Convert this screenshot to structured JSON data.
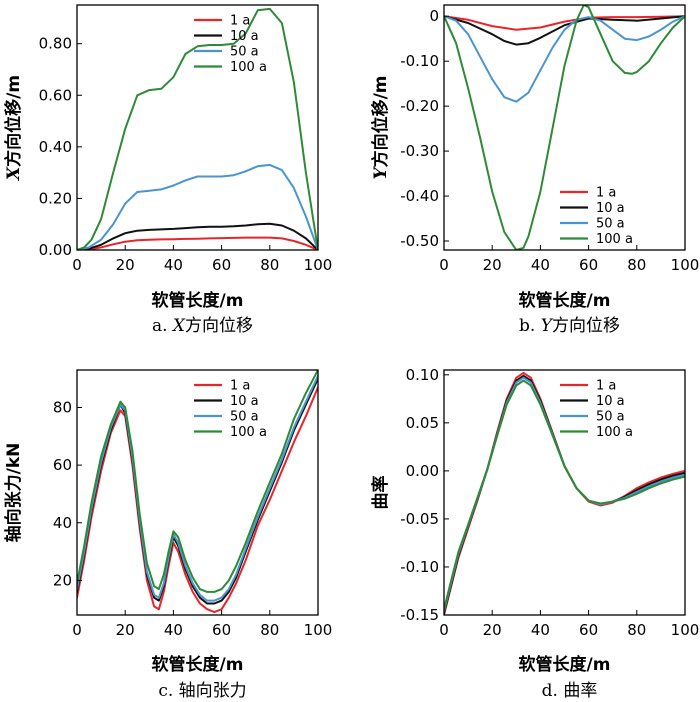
{
  "colors": {
    "1 a": "#e8252a",
    "10 a": "#111111",
    "50 a": "#4a95d0",
    "100 a": "#2e8b35"
  },
  "chart_data": [
    {
      "id": "a",
      "type": "line",
      "caption_prefix": "a. ",
      "caption_var": "X",
      "caption_text": "方向位移",
      "xlabel": "软管长度/m",
      "ylabel_var": "X",
      "ylabel_text": "方向位移/m",
      "xlim": [
        0,
        100
      ],
      "ylim": [
        0,
        0.95
      ],
      "xticks": [
        0,
        20,
        40,
        60,
        80,
        100
      ],
      "xtick_labels": [
        "0",
        "20",
        "40",
        "60",
        "80",
        "100"
      ],
      "yticks": [
        0,
        0.2,
        0.4,
        0.6,
        0.8
      ],
      "ytick_labels": [
        "0.00",
        "0.20",
        "0.40",
        "0.60",
        "0.80"
      ],
      "legend_position": "top-right",
      "series": [
        {
          "name": "1 a",
          "x": [
            0,
            5,
            10,
            15,
            20,
            25,
            30,
            35,
            40,
            45,
            50,
            55,
            60,
            65,
            70,
            75,
            80,
            85,
            90,
            95,
            100
          ],
          "y": [
            0,
            0.002,
            0.01,
            0.022,
            0.032,
            0.038,
            0.04,
            0.041,
            0.042,
            0.043,
            0.044,
            0.045,
            0.046,
            0.047,
            0.048,
            0.048,
            0.048,
            0.045,
            0.035,
            0.02,
            0
          ]
        },
        {
          "name": "10 a",
          "x": [
            0,
            5,
            10,
            15,
            20,
            25,
            30,
            35,
            40,
            45,
            50,
            55,
            60,
            65,
            70,
            75,
            80,
            85,
            90,
            95,
            100
          ],
          "y": [
            0,
            0.005,
            0.02,
            0.045,
            0.065,
            0.075,
            0.078,
            0.08,
            0.082,
            0.085,
            0.088,
            0.09,
            0.09,
            0.092,
            0.095,
            0.1,
            0.102,
            0.095,
            0.075,
            0.045,
            0
          ]
        },
        {
          "name": "50 a",
          "x": [
            0,
            5,
            10,
            15,
            20,
            25,
            30,
            35,
            40,
            45,
            50,
            55,
            60,
            65,
            70,
            75,
            80,
            85,
            90,
            95,
            100
          ],
          "y": [
            0,
            0.01,
            0.04,
            0.1,
            0.18,
            0.225,
            0.23,
            0.235,
            0.25,
            0.27,
            0.285,
            0.285,
            0.285,
            0.29,
            0.305,
            0.325,
            0.33,
            0.31,
            0.24,
            0.13,
            0
          ]
        },
        {
          "name": "100 a",
          "x": [
            0,
            3,
            6,
            10,
            15,
            20,
            25,
            30,
            35,
            40,
            45,
            50,
            55,
            60,
            65,
            70,
            75,
            80,
            85,
            90,
            95,
            100
          ],
          "y": [
            0,
            0.01,
            0.04,
            0.12,
            0.3,
            0.47,
            0.6,
            0.62,
            0.625,
            0.67,
            0.76,
            0.79,
            0.795,
            0.795,
            0.8,
            0.84,
            0.93,
            0.935,
            0.88,
            0.65,
            0.3,
            0
          ]
        }
      ]
    },
    {
      "id": "b",
      "type": "line",
      "caption_prefix": "b. ",
      "caption_var": "Y",
      "caption_text": "方向位移",
      "xlabel": "软管长度/m",
      "ylabel_var": "Y",
      "ylabel_text": "方向位移/m",
      "xlim": [
        0,
        100
      ],
      "ylim": [
        -0.52,
        0.025
      ],
      "xticks": [
        0,
        20,
        40,
        60,
        80,
        100
      ],
      "xtick_labels": [
        "0",
        "20",
        "40",
        "60",
        "80",
        "100"
      ],
      "yticks": [
        0,
        -0.1,
        -0.2,
        -0.3,
        -0.4,
        -0.5
      ],
      "ytick_labels": [
        "0",
        "-0.10",
        "-0.20",
        "-0.30",
        "-0.40",
        "-0.50"
      ],
      "legend_position": "center-right",
      "series": [
        {
          "name": "1 a",
          "x": [
            0,
            10,
            20,
            30,
            40,
            50,
            60,
            70,
            80,
            90,
            100
          ],
          "y": [
            0,
            -0.008,
            -0.022,
            -0.03,
            -0.025,
            -0.012,
            -0.003,
            -0.002,
            -0.002,
            -0.001,
            0
          ]
        },
        {
          "name": "10 a",
          "x": [
            0,
            10,
            20,
            25,
            30,
            35,
            40,
            50,
            60,
            70,
            80,
            90,
            100
          ],
          "y": [
            0,
            -0.015,
            -0.04,
            -0.055,
            -0.063,
            -0.06,
            -0.048,
            -0.02,
            -0.005,
            -0.008,
            -0.01,
            -0.005,
            0
          ]
        },
        {
          "name": "50 a",
          "x": [
            0,
            5,
            10,
            15,
            20,
            25,
            30,
            35,
            40,
            45,
            50,
            55,
            60,
            65,
            70,
            75,
            80,
            85,
            90,
            95,
            100
          ],
          "y": [
            0,
            -0.01,
            -0.04,
            -0.09,
            -0.14,
            -0.18,
            -0.19,
            -0.17,
            -0.12,
            -0.07,
            -0.03,
            -0.008,
            -0.002,
            -0.01,
            -0.03,
            -0.05,
            -0.053,
            -0.045,
            -0.03,
            -0.012,
            0
          ]
        },
        {
          "name": "100 a",
          "x": [
            0,
            5,
            10,
            15,
            20,
            25,
            30,
            33,
            35,
            40,
            45,
            50,
            55,
            58,
            60,
            65,
            70,
            75,
            78,
            80,
            85,
            90,
            95,
            100
          ],
          "y": [
            0,
            -0.06,
            -0.16,
            -0.27,
            -0.39,
            -0.48,
            -0.52,
            -0.515,
            -0.49,
            -0.39,
            -0.25,
            -0.11,
            -0.01,
            0.025,
            0.02,
            -0.04,
            -0.1,
            -0.126,
            -0.128,
            -0.124,
            -0.1,
            -0.06,
            -0.025,
            0
          ]
        }
      ]
    },
    {
      "id": "c",
      "type": "line",
      "caption_prefix": "c. ",
      "caption_var": "",
      "caption_text": "轴向张力",
      "xlabel": "软管长度/m",
      "ylabel_var": "",
      "ylabel_text": "轴向张力/kN",
      "xlim": [
        0,
        100
      ],
      "ylim": [
        8,
        93
      ],
      "xticks": [
        0,
        20,
        40,
        60,
        80,
        100
      ],
      "xtick_labels": [
        "0",
        "20",
        "40",
        "60",
        "80",
        "100"
      ],
      "yticks": [
        20,
        40,
        60,
        80
      ],
      "ytick_labels": [
        "20",
        "40",
        "60",
        "80"
      ],
      "legend_position": "top-right",
      "series": [
        {
          "name": "1 a",
          "x": [
            0,
            3,
            6,
            10,
            14,
            18,
            20,
            23,
            26,
            29,
            32,
            34,
            36,
            38,
            40,
            42,
            45,
            48,
            51,
            54,
            57,
            60,
            63,
            66,
            70,
            75,
            80,
            85,
            90,
            95,
            100
          ],
          "y": [
            14,
            27,
            42,
            58,
            71,
            79,
            77,
            60,
            38,
            20,
            11,
            10,
            16,
            25,
            33,
            30,
            22,
            16,
            12,
            10,
            9,
            10,
            14,
            19,
            27,
            39,
            48,
            58,
            68,
            77,
            87
          ]
        },
        {
          "name": "10 a",
          "x": [
            0,
            3,
            6,
            10,
            14,
            18,
            20,
            23,
            26,
            29,
            32,
            34,
            36,
            38,
            40,
            42,
            45,
            48,
            51,
            54,
            57,
            60,
            63,
            66,
            70,
            75,
            80,
            85,
            90,
            95,
            100
          ],
          "y": [
            16,
            29,
            44,
            60,
            72,
            81,
            78,
            62,
            40,
            22,
            14,
            13,
            18,
            27,
            35,
            32,
            24,
            18,
            14,
            12,
            12,
            13,
            16,
            21,
            30,
            41,
            51,
            61,
            72,
            81,
            90
          ]
        },
        {
          "name": "50 a",
          "x": [
            0,
            3,
            6,
            10,
            14,
            18,
            20,
            23,
            26,
            29,
            32,
            34,
            36,
            38,
            40,
            42,
            45,
            48,
            51,
            54,
            57,
            60,
            63,
            66,
            70,
            75,
            80,
            85,
            90,
            95,
            100
          ],
          "y": [
            17,
            30,
            45,
            61,
            73,
            81,
            79,
            63,
            41,
            23,
            15,
            14,
            19,
            28,
            36,
            33,
            25,
            19,
            15,
            13,
            13,
            14,
            17,
            22,
            31,
            42,
            52,
            62,
            73,
            82,
            91
          ]
        },
        {
          "name": "100 a",
          "x": [
            0,
            3,
            6,
            10,
            14,
            18,
            20,
            23,
            26,
            29,
            32,
            34,
            36,
            38,
            40,
            42,
            45,
            48,
            51,
            54,
            57,
            60,
            63,
            66,
            70,
            75,
            80,
            85,
            90,
            95,
            100
          ],
          "y": [
            19,
            32,
            47,
            63,
            74,
            82,
            80,
            65,
            43,
            26,
            18,
            17,
            22,
            30,
            37,
            35,
            27,
            21,
            17,
            16,
            16,
            17,
            20,
            25,
            33,
            44,
            54,
            64,
            76,
            85,
            93
          ]
        }
      ]
    },
    {
      "id": "d",
      "type": "line",
      "caption_prefix": "d. ",
      "caption_var": "",
      "caption_text": "曲率",
      "xlabel": "软管长度/m",
      "ylabel_var": "",
      "ylabel_text": "曲率",
      "xlim": [
        0,
        100
      ],
      "ylim": [
        -0.15,
        0.105
      ],
      "xticks": [
        0,
        20,
        40,
        60,
        80,
        100
      ],
      "xtick_labels": [
        "0",
        "20",
        "40",
        "60",
        "80",
        "100"
      ],
      "yticks": [
        0.1,
        0.05,
        0,
        -0.05,
        -0.1,
        -0.15
      ],
      "ytick_labels": [
        "0.10",
        "0.05",
        "0.00",
        "-0.05",
        "-0.10",
        "-0.15"
      ],
      "legend_position": "top-right",
      "series": [
        {
          "name": "1 a",
          "x": [
            0,
            3,
            6,
            10,
            14,
            18,
            22,
            26,
            30,
            33,
            36,
            40,
            45,
            50,
            55,
            60,
            65,
            70,
            75,
            80,
            85,
            90,
            95,
            100
          ],
          "y": [
            -0.15,
            -0.12,
            -0.09,
            -0.06,
            -0.03,
            0.002,
            0.04,
            0.075,
            0.097,
            0.102,
            0.097,
            0.075,
            0.04,
            0.005,
            -0.018,
            -0.032,
            -0.036,
            -0.033,
            -0.026,
            -0.018,
            -0.012,
            -0.007,
            -0.003,
            0
          ]
        },
        {
          "name": "10 a",
          "x": [
            0,
            3,
            6,
            10,
            14,
            18,
            22,
            26,
            30,
            33,
            36,
            40,
            45,
            50,
            55,
            60,
            65,
            70,
            75,
            80,
            85,
            90,
            95,
            100
          ],
          "y": [
            -0.148,
            -0.118,
            -0.088,
            -0.058,
            -0.029,
            0.002,
            0.038,
            0.073,
            0.094,
            0.099,
            0.094,
            0.073,
            0.039,
            0.005,
            -0.018,
            -0.031,
            -0.035,
            -0.032,
            -0.027,
            -0.02,
            -0.014,
            -0.009,
            -0.005,
            -0.002
          ]
        },
        {
          "name": "50 a",
          "x": [
            0,
            3,
            6,
            10,
            14,
            18,
            22,
            26,
            30,
            33,
            36,
            40,
            45,
            50,
            55,
            60,
            65,
            70,
            75,
            80,
            85,
            90,
            95,
            100
          ],
          "y": [
            -0.146,
            -0.116,
            -0.086,
            -0.057,
            -0.028,
            0.002,
            0.037,
            0.071,
            0.092,
            0.097,
            0.092,
            0.071,
            0.038,
            0.005,
            -0.018,
            -0.031,
            -0.035,
            -0.032,
            -0.028,
            -0.022,
            -0.016,
            -0.011,
            -0.007,
            -0.004
          ]
        },
        {
          "name": "100 a",
          "x": [
            0,
            3,
            6,
            10,
            14,
            18,
            22,
            26,
            30,
            33,
            36,
            40,
            45,
            50,
            55,
            60,
            65,
            70,
            75,
            80,
            85,
            90,
            95,
            100
          ],
          "y": [
            -0.144,
            -0.114,
            -0.084,
            -0.056,
            -0.027,
            0.002,
            0.036,
            0.069,
            0.089,
            0.094,
            0.089,
            0.069,
            0.037,
            0.005,
            -0.018,
            -0.031,
            -0.034,
            -0.032,
            -0.029,
            -0.024,
            -0.018,
            -0.013,
            -0.009,
            -0.006
          ]
        }
      ]
    }
  ]
}
